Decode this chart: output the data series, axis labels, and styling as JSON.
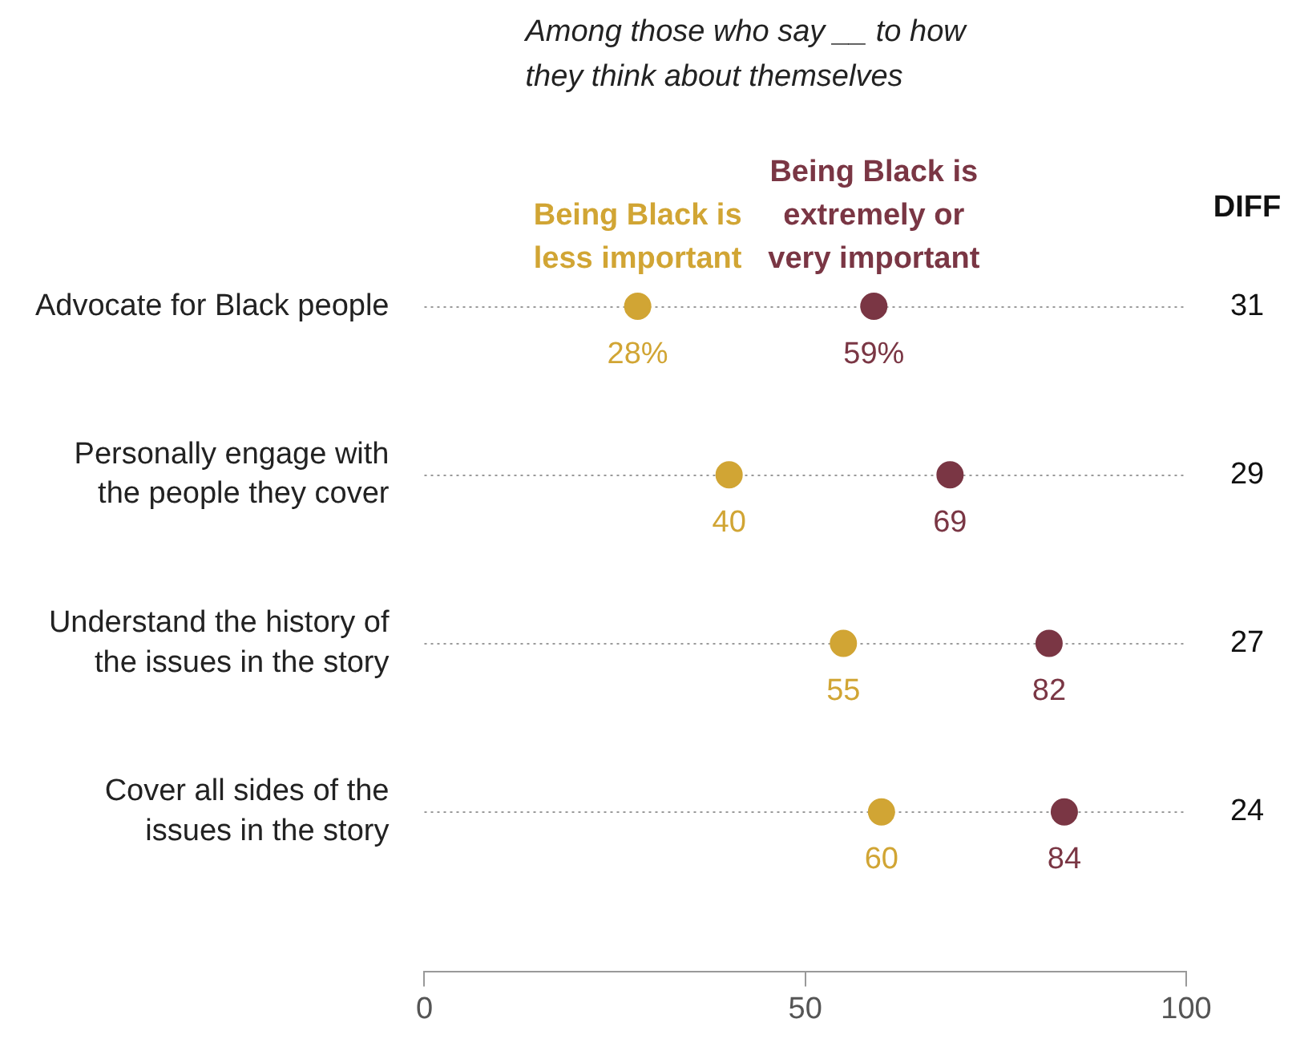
{
  "chart_data": {
    "type": "scatter",
    "title": "Among those who say __ to how they think about themselves",
    "categories": [
      "Advocate for Black people",
      "Personally engage with the people they cover",
      "Understand the history of the issues in the story",
      "Cover all sides of the issues in the story"
    ],
    "series": [
      {
        "name": "Being Black is less important",
        "color": "#d1a534",
        "values": [
          28,
          40,
          55,
          60
        ],
        "value_labels": [
          "28%",
          "40",
          "55",
          "60"
        ]
      },
      {
        "name": "Being Black is extremely or very important",
        "color": "#7a3644",
        "values": [
          59,
          69,
          82,
          84
        ],
        "value_labels": [
          "59%",
          "69",
          "82",
          "84"
        ]
      }
    ],
    "orientation": "horizontal",
    "xlim": [
      0,
      100
    ],
    "xticks": [
      0,
      50,
      100
    ],
    "grid": "y",
    "legend": "top",
    "marker": "circle",
    "annotations": [
      "DIFF",
      "31",
      "29",
      "27",
      "24"
    ]
  }
}
